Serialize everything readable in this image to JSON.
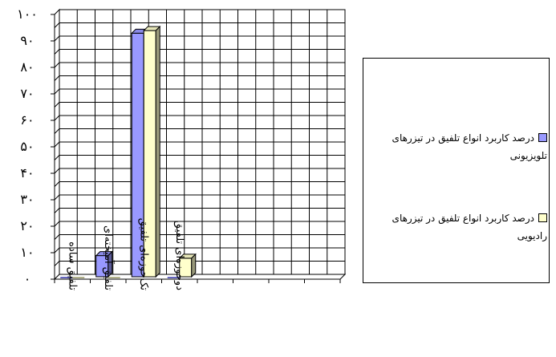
{
  "chart_data": {
    "type": "bar",
    "categories": [
      "تلفیق ساده",
      "تلفیق آمیخته‌ای",
      "تک‌حوزه‌ای تلفیق",
      "دوحوزه‌ای تلفیق",
      "",
      "",
      "",
      ""
    ],
    "series": [
      {
        "name": "درصد کاربرد انواع تلفیق در تیزرهای تلویزیونی",
        "values": [
          0,
          8,
          92,
          0,
          0,
          0,
          0,
          0
        ],
        "color": "#9999ff"
      },
      {
        "name": "درصد کاربرد انواع تلفیق در تیزرهای رادیویی",
        "values": [
          0,
          0,
          93,
          7,
          0,
          0,
          0,
          0
        ],
        "color": "#ffffcc"
      }
    ],
    "yticks": [
      "۰",
      "۱۰",
      "۲۰",
      "۳۰",
      "۴۰",
      "۵۰",
      "۶۰",
      "۷۰",
      "۸۰",
      "۹۰",
      "۱۰۰"
    ],
    "ylim": [
      0,
      100
    ],
    "grid": true,
    "legend": "right",
    "title": "",
    "xlabel": "",
    "ylabel": ""
  }
}
